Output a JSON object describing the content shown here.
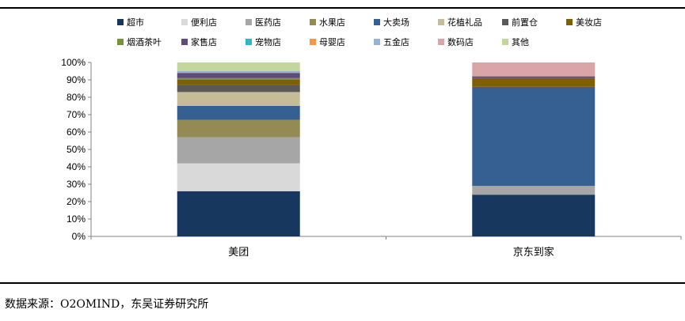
{
  "chart_data": {
    "type": "bar",
    "stacked": true,
    "categories": [
      "美团",
      "京东到家"
    ],
    "series": [
      {
        "name": "超市",
        "values": [
          26,
          24
        ],
        "color": "#17375e"
      },
      {
        "name": "便利店",
        "values": [
          16,
          0
        ],
        "color": "#d9d9d9"
      },
      {
        "name": "医药店",
        "values": [
          15,
          5
        ],
        "color": "#a6a6a6"
      },
      {
        "name": "水果店",
        "values": [
          10,
          0
        ],
        "color": "#948a54"
      },
      {
        "name": "大卖场",
        "values": [
          8,
          56
        ],
        "color": "#366092"
      },
      {
        "name": "花植礼品",
        "values": [
          8,
          0
        ],
        "color": "#c4bd97"
      },
      {
        "name": "前置仓",
        "values": [
          4,
          1
        ],
        "color": "#595959"
      },
      {
        "name": "美妆店",
        "values": [
          3,
          5
        ],
        "color": "#7f6000"
      },
      {
        "name": "烟酒茶叶",
        "values": [
          1,
          0
        ],
        "color": "#76933c"
      },
      {
        "name": "家售店",
        "values": [
          3,
          1
        ],
        "color": "#604a7b"
      },
      {
        "name": "宠物店",
        "values": [
          0,
          0
        ],
        "color": "#31b6c9"
      },
      {
        "name": "母婴店",
        "values": [
          0,
          0
        ],
        "color": "#f79646"
      },
      {
        "name": "五金店",
        "values": [
          1,
          0
        ],
        "color": "#95b3d7"
      },
      {
        "name": "数码店",
        "values": [
          0,
          8
        ],
        "color": "#d9a5a6"
      },
      {
        "name": "其他",
        "values": [
          5,
          0
        ],
        "color": "#c3d69b"
      }
    ],
    "yticks": [
      "0%",
      "10%",
      "20%",
      "30%",
      "40%",
      "50%",
      "60%",
      "70%",
      "80%",
      "90%",
      "100%"
    ],
    "ylim": [
      0,
      100
    ],
    "legend_position": "top"
  },
  "source": "数据来源：O2OMIND，东吴证券研究所"
}
